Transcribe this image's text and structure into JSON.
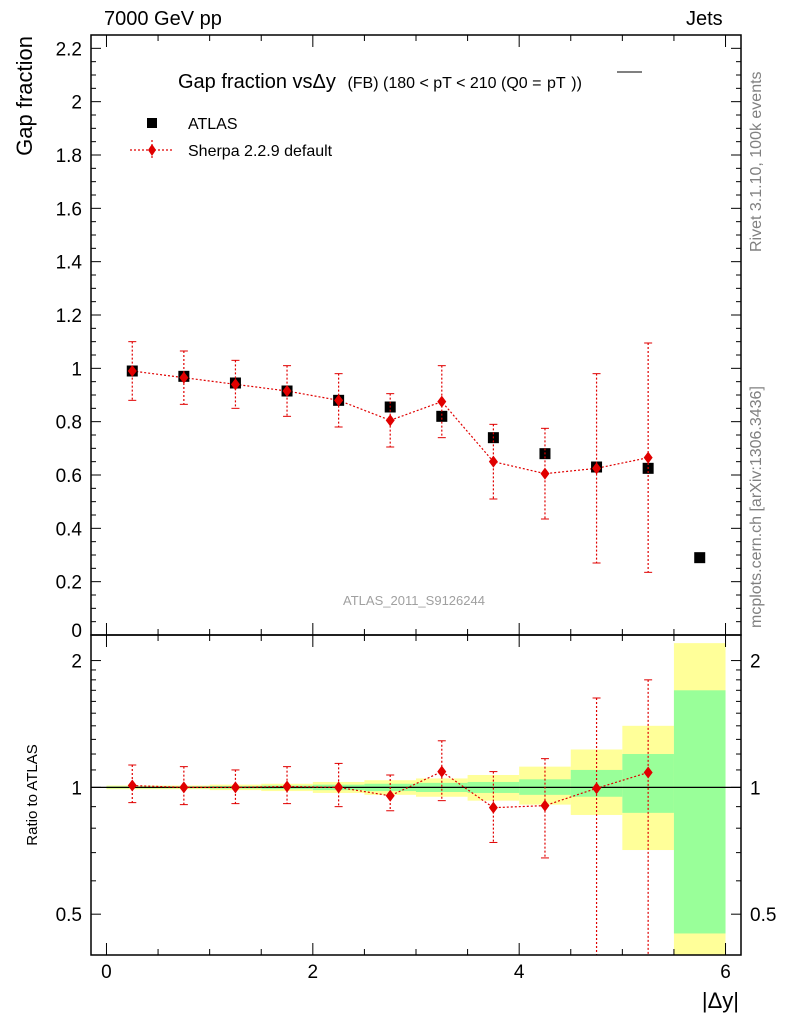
{
  "header": {
    "left": "7000 GeV pp",
    "right": "Jets"
  },
  "side_labels": {
    "rivet": "Rivet 3.1.10,  100k events",
    "mcplots": "mcplots.cern.ch [arXiv:1306.3436]"
  },
  "colors": {
    "data": "#000000",
    "mc": "#e00000",
    "band_inner": "#99ff99",
    "band_outer": "#ffff99",
    "watermark": "#a0a0a0"
  },
  "chart_data": [
    {
      "type": "scatter",
      "title_main": "Gap fraction vsΔy",
      "title_sub": "(FB) (180 < pT < 210 (Q0 =",
      "title_ptbar": "pT",
      "title_close": "))",
      "ylabel": "Gap fraction",
      "watermark": "ATLAS_2011_S9126244",
      "xlim": [
        -0.15,
        6.15
      ],
      "ylim": [
        0,
        2.25
      ],
      "yticks": [
        "0",
        "0.2",
        "0.4",
        "0.6",
        "0.8",
        "1",
        "1.2",
        "1.4",
        "1.6",
        "1.8",
        "2",
        "2.2"
      ],
      "legend_position": "top-left",
      "series": [
        {
          "name": "ATLAS",
          "marker": "square",
          "x": [
            0.25,
            0.75,
            1.25,
            1.75,
            2.25,
            2.75,
            3.25,
            3.75,
            4.25,
            4.75,
            5.25,
            5.75
          ],
          "y": [
            0.99,
            0.97,
            0.945,
            0.915,
            0.88,
            0.855,
            0.82,
            0.74,
            0.68,
            0.63,
            0.625,
            0.29
          ],
          "err": [
            0.01,
            0.01,
            0.01,
            0.012,
            0.012,
            0.015,
            0.02,
            0.02,
            0.02,
            0.02,
            0.02,
            0.01
          ]
        },
        {
          "name": "Sherpa 2.2.9 default",
          "marker": "diamond",
          "line": "dotted",
          "x": [
            0.25,
            0.75,
            1.25,
            1.75,
            2.25,
            2.75,
            3.25,
            3.75,
            4.25,
            4.75,
            5.25
          ],
          "y": [
            0.99,
            0.965,
            0.94,
            0.915,
            0.88,
            0.805,
            0.875,
            0.65,
            0.605,
            0.625,
            0.665
          ],
          "err": [
            0.11,
            0.1,
            0.09,
            0.095,
            0.1,
            0.1,
            0.135,
            0.14,
            0.17,
            0.355,
            0.43
          ]
        }
      ]
    },
    {
      "type": "scatter",
      "ylabel": "Ratio to ATLAS",
      "xlabel": "|Δy|",
      "xlim": [
        -0.15,
        6.15
      ],
      "ylim": [
        0.4,
        2.3
      ],
      "log_y": true,
      "reference": 1,
      "xticks": [
        "0",
        "2",
        "4",
        "6"
      ],
      "yticks": [
        "0.5",
        "1",
        "2"
      ],
      "bands": {
        "edges": [
          0,
          0.5,
          1,
          1.5,
          2,
          2.5,
          3,
          3.5,
          4,
          4.5,
          5,
          5.5,
          6
        ],
        "inner_lo": [
          0.995,
          0.995,
          0.993,
          0.99,
          0.985,
          0.98,
          0.975,
          0.97,
          0.96,
          0.95,
          0.87,
          0.45
        ],
        "inner_hi": [
          1.005,
          1.005,
          1.007,
          1.01,
          1.015,
          1.02,
          1.025,
          1.03,
          1.045,
          1.1,
          1.2,
          1.7
        ],
        "outer_lo": [
          0.99,
          0.99,
          0.985,
          0.98,
          0.97,
          0.96,
          0.95,
          0.93,
          0.91,
          0.86,
          0.71,
          0.3
        ],
        "outer_hi": [
          1.01,
          1.01,
          1.015,
          1.02,
          1.03,
          1.04,
          1.05,
          1.07,
          1.12,
          1.23,
          1.4,
          2.2
        ]
      },
      "series": [
        {
          "name": "Sherpa 2.2.9 default",
          "x": [
            0.25,
            0.75,
            1.25,
            1.75,
            2.25,
            2.75,
            3.25,
            3.75,
            4.25,
            4.75,
            5.25
          ],
          "y": [
            1.01,
            1.0,
            1.0,
            1.005,
            1.0,
            0.955,
            1.09,
            0.895,
            0.905,
            0.995,
            1.085
          ],
          "lo": [
            0.92,
            0.91,
            0.915,
            0.915,
            0.9,
            0.88,
            0.93,
            0.74,
            0.68,
            0.38,
            0.35
          ],
          "hi": [
            1.13,
            1.12,
            1.1,
            1.12,
            1.14,
            1.07,
            1.29,
            1.09,
            1.17,
            1.63,
            1.8
          ]
        }
      ]
    }
  ]
}
